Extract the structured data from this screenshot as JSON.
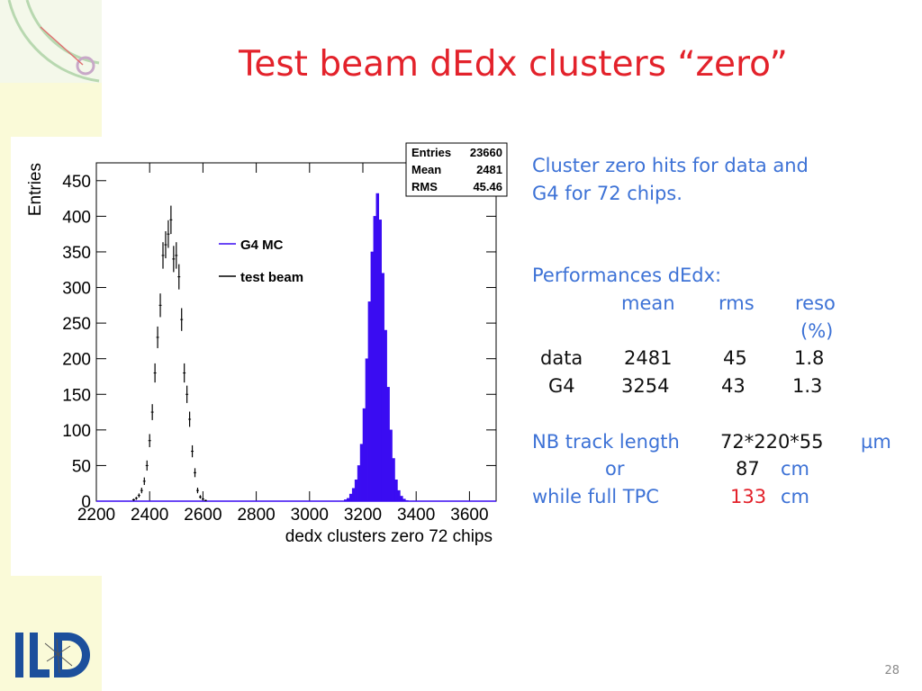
{
  "title": "Test beam dEdx clusters “zero”",
  "page_number": "28",
  "chart_data": {
    "type": "histogram",
    "x_label": "dedx clusters zero 72 chips",
    "y_label": "Entries",
    "xlim": [
      2200,
      3700
    ],
    "ylim": [
      0,
      475
    ],
    "xticks": [
      2200,
      2400,
      2600,
      2800,
      3000,
      3200,
      3400,
      3600
    ],
    "yticks": [
      0,
      50,
      100,
      150,
      200,
      250,
      300,
      350,
      400,
      450
    ],
    "stats": [
      [
        "Entries",
        "23660"
      ],
      [
        "Mean",
        "2481"
      ],
      [
        "RMS",
        "45.46"
      ]
    ],
    "series": [
      {
        "name": "G4 MC",
        "color": "#3a0cf2",
        "bins": [
          3130,
          3140,
          3150,
          3160,
          3170,
          3180,
          3190,
          3200,
          3210,
          3220,
          3230,
          3240,
          3250,
          3260,
          3270,
          3280,
          3290,
          3300,
          3310,
          3320,
          3330,
          3340,
          3350,
          3360,
          3370
        ],
        "values": [
          2,
          4,
          10,
          18,
          30,
          50,
          80,
          130,
          200,
          280,
          350,
          400,
          432,
          395,
          320,
          240,
          160,
          100,
          60,
          30,
          15,
          7,
          3,
          1
        ]
      },
      {
        "name": "test beam",
        "color": "#000000",
        "x": [
          2340,
          2350,
          2360,
          2370,
          2380,
          2390,
          2400,
          2410,
          2420,
          2430,
          2440,
          2450,
          2460,
          2470,
          2480,
          2490,
          2500,
          2510,
          2520,
          2530,
          2540,
          2550,
          2560,
          2570,
          2580,
          2590,
          2600,
          2610
        ],
        "values": [
          2,
          4,
          8,
          15,
          28,
          50,
          85,
          125,
          180,
          230,
          275,
          345,
          360,
          375,
          395,
          340,
          345,
          315,
          255,
          180,
          150,
          115,
          70,
          40,
          15,
          6,
          3,
          1
        ],
        "errors": [
          1.4,
          2,
          2.8,
          3.9,
          5.3,
          7.1,
          9.2,
          11.2,
          13.4,
          15.2,
          16.6,
          18.6,
          19,
          19.4,
          19.9,
          18.4,
          18.6,
          17.7,
          16,
          13.4,
          12.2,
          10.7,
          8.4,
          6.3,
          3.9,
          2.4,
          1.7,
          1
        ]
      }
    ]
  },
  "notes": {
    "intro": [
      "Cluster zero hits for data and",
      "G4 for 72 chips."
    ],
    "performance_title": "Performances dEdx:",
    "table": {
      "header": [
        "mean",
        "rms",
        "reso"
      ],
      "unit": "(%)",
      "rows": [
        [
          "data",
          "2481",
          "45",
          "1.8"
        ],
        [
          "G4",
          "3254",
          "43",
          "1.3"
        ]
      ]
    },
    "track": {
      "label": "NB track length",
      "value": "72*220*55",
      "unit": "µm"
    },
    "or": {
      "label": "or",
      "value": "87",
      "unit": "cm"
    },
    "tpc": {
      "label": "while full TPC",
      "value": "133",
      "unit": "cm"
    }
  }
}
